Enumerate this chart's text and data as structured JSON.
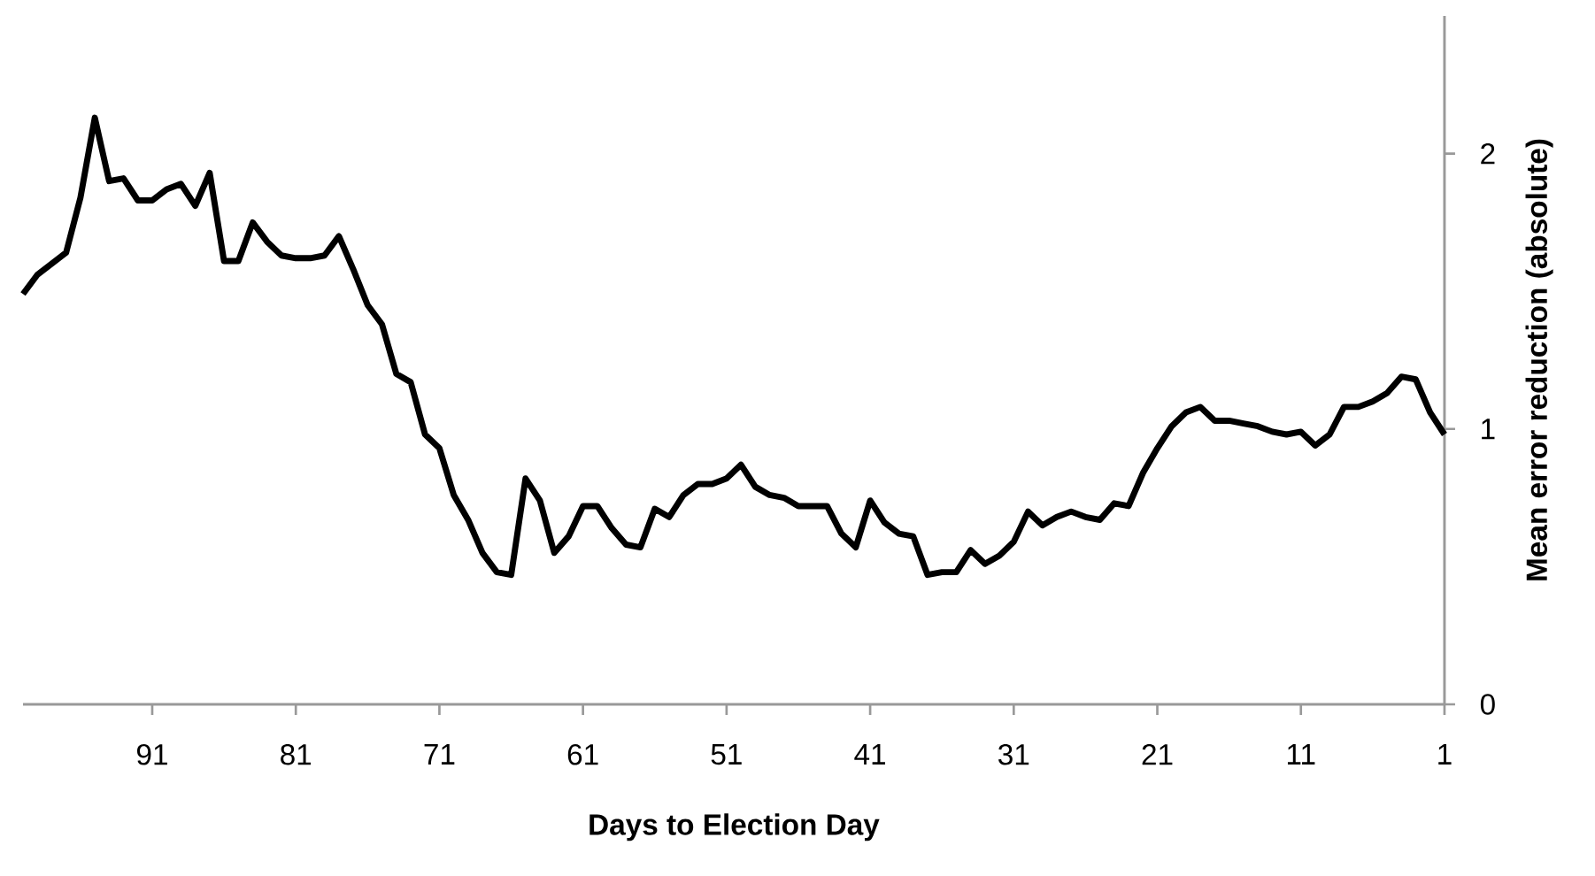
{
  "chart_data": {
    "type": "line",
    "xlabel": "Days to Election Day",
    "ylabel": "Mean error reduction (absolute)",
    "color": "#000000",
    "x": [
      100,
      99,
      98,
      97,
      96,
      95,
      94,
      93,
      92,
      91,
      90,
      89,
      88,
      87,
      86,
      85,
      84,
      83,
      82,
      81,
      80,
      79,
      78,
      77,
      76,
      75,
      74,
      73,
      72,
      71,
      70,
      69,
      68,
      67,
      66,
      65,
      64,
      63,
      62,
      61,
      60,
      59,
      58,
      57,
      56,
      55,
      54,
      53,
      52,
      51,
      50,
      49,
      48,
      47,
      46,
      45,
      44,
      43,
      42,
      41,
      40,
      39,
      38,
      37,
      36,
      35,
      34,
      33,
      32,
      31,
      30,
      29,
      28,
      27,
      26,
      25,
      24,
      23,
      22,
      21,
      20,
      19,
      18,
      17,
      16,
      15,
      14,
      13,
      12,
      11,
      10,
      9,
      8,
      7,
      6,
      5,
      4,
      3,
      2,
      1
    ],
    "values": [
      1.49,
      1.56,
      1.6,
      1.64,
      1.84,
      2.13,
      1.9,
      1.91,
      1.83,
      1.83,
      1.87,
      1.89,
      1.81,
      1.93,
      1.61,
      1.61,
      1.75,
      1.68,
      1.63,
      1.62,
      1.62,
      1.63,
      1.7,
      1.58,
      1.45,
      1.38,
      1.2,
      1.17,
      0.98,
      0.93,
      0.76,
      0.67,
      0.55,
      0.48,
      0.47,
      0.82,
      0.74,
      0.55,
      0.61,
      0.72,
      0.72,
      0.64,
      0.58,
      0.57,
      0.71,
      0.68,
      0.76,
      0.8,
      0.8,
      0.82,
      0.87,
      0.79,
      0.76,
      0.75,
      0.72,
      0.72,
      0.72,
      0.62,
      0.57,
      0.74,
      0.66,
      0.62,
      0.61,
      0.47,
      0.48,
      0.48,
      0.56,
      0.51,
      0.54,
      0.59,
      0.7,
      0.65,
      0.68,
      0.7,
      0.68,
      0.67,
      0.73,
      0.72,
      0.84,
      0.93,
      1.01,
      1.06,
      1.08,
      1.03,
      1.03,
      1.02,
      1.01,
      0.99,
      0.98,
      0.99,
      0.94,
      0.98,
      1.08,
      1.08,
      1.1,
      1.13,
      1.19,
      1.18,
      1.06,
      0.98
    ],
    "xlim": [
      100,
      1
    ],
    "xticks": [
      91,
      81,
      71,
      61,
      51,
      41,
      31,
      21,
      11,
      1
    ],
    "ylim": [
      0,
      2.5
    ],
    "yticks": [
      0,
      1,
      2
    ]
  }
}
